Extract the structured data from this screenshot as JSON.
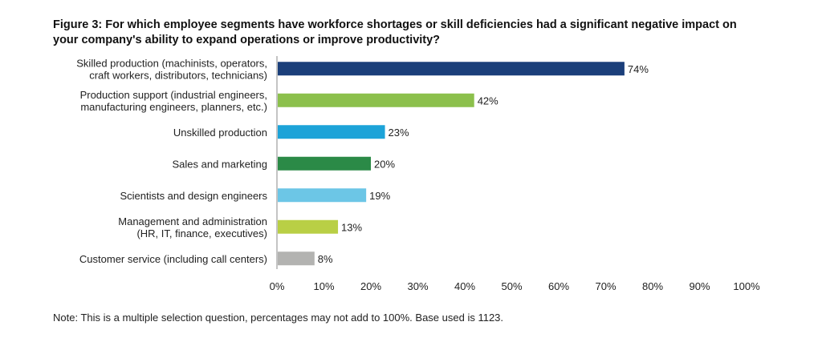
{
  "chart_data": {
    "type": "bar",
    "orientation": "horizontal",
    "title": "Figure 3: For which employee segments have workforce shortages or skill deficiencies had a significant negative impact on your company's ability to expand operations or improve productivity?",
    "title_lines": [
      "Figure 3: For which employee segments have workforce shortages or skill deficiencies had a significant negative impact on",
      "your company's ability to expand operations or improve productivity?"
    ],
    "categories": [
      "Skilled production (machinists, operators, craft workers, distributors, technicians)",
      "Production support (industrial engineers, manufacturing engineers, planners, etc.)",
      "Unskilled production",
      "Sales and marketing",
      "Scientists and design engineers",
      "Management and administration (HR, IT, finance, executives)",
      "Customer service (including call centers)"
    ],
    "category_lines": [
      [
        "Skilled production (machinists, operators,",
        "craft workers, distributors, technicians)"
      ],
      [
        "Production support (industrial engineers,",
        "manufacturing engineers, planners, etc.)"
      ],
      [
        "Unskilled production"
      ],
      [
        "Sales and marketing"
      ],
      [
        "Scientists and design engineers"
      ],
      [
        "Management and administration",
        "(HR, IT, finance, executives)"
      ],
      [
        "Customer service (including call centers)"
      ]
    ],
    "values": [
      74,
      42,
      23,
      20,
      19,
      13,
      8
    ],
    "value_labels": [
      "74%",
      "42%",
      "23%",
      "20%",
      "19%",
      "13%",
      "8%"
    ],
    "colors": [
      "#1b3f7a",
      "#8cc04c",
      "#1ca3d8",
      "#2b8a47",
      "#6cc6e6",
      "#b9cf45",
      "#b3b3b1"
    ],
    "xlim": [
      0,
      100
    ],
    "x_ticks": [
      0,
      10,
      20,
      30,
      40,
      50,
      60,
      70,
      80,
      90,
      100
    ],
    "x_tick_labels": [
      "0%",
      "10%",
      "20%",
      "30%",
      "40%",
      "50%",
      "60%",
      "70%",
      "80%",
      "90%",
      "100%"
    ],
    "xlabel": "",
    "ylabel": "",
    "grid": false,
    "note": "Note: This is a multiple selection question, percentages may not add to 100%. Base used is 1123."
  }
}
